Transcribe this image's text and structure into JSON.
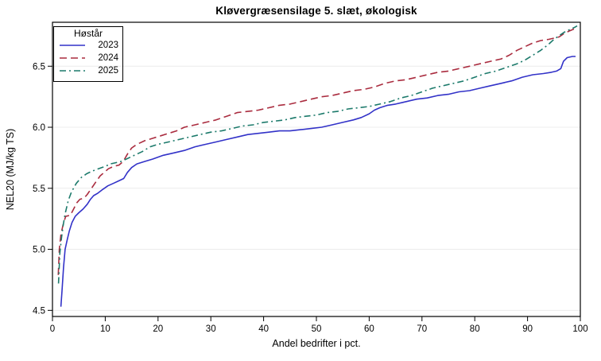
{
  "chart_data": {
    "type": "line",
    "title": "Kløvergræsensilage 5. slæt, økologisk",
    "xlabel": "Andel bedrifter i pct.",
    "ylabel": "NEL20 (MJ/kg TS)",
    "xlim": [
      0,
      100
    ],
    "ylim": [
      4.45,
      6.86
    ],
    "x_ticks": [
      0,
      10,
      20,
      30,
      40,
      50,
      60,
      70,
      80,
      90,
      100
    ],
    "x_tick_labels": [
      "0",
      "10",
      "20",
      "30",
      "40",
      "50",
      "60",
      "70",
      "80",
      "90",
      "100"
    ],
    "y_ticks": [
      4.5,
      5.0,
      5.5,
      6.0,
      6.5
    ],
    "y_tick_labels": [
      "4.5",
      "5.0",
      "5.5",
      "6.0",
      "6.5"
    ],
    "grid": "horizontal gridlines on, light gray",
    "legend": {
      "title": "Høstår",
      "position": "top-left-inside"
    },
    "series": [
      {
        "name": "2023",
        "color": "#3232c8",
        "dash": "",
        "points": [
          [
            1.6,
            4.53
          ],
          [
            1.8,
            4.66
          ],
          [
            2.1,
            4.85
          ],
          [
            2.4,
            5.0
          ],
          [
            2.8,
            5.08
          ],
          [
            3.2,
            5.15
          ],
          [
            3.7,
            5.22
          ],
          [
            4.3,
            5.27
          ],
          [
            5,
            5.3
          ],
          [
            5.8,
            5.33
          ],
          [
            6.6,
            5.37
          ],
          [
            7.2,
            5.41
          ],
          [
            7.8,
            5.44
          ],
          [
            8.6,
            5.46
          ],
          [
            9.5,
            5.49
          ],
          [
            10.5,
            5.52
          ],
          [
            11.5,
            5.54
          ],
          [
            12.5,
            5.56
          ],
          [
            13.5,
            5.58
          ],
          [
            14.2,
            5.63
          ],
          [
            15,
            5.67
          ],
          [
            16,
            5.7
          ],
          [
            17.5,
            5.72
          ],
          [
            19,
            5.74
          ],
          [
            21,
            5.77
          ],
          [
            23,
            5.79
          ],
          [
            25,
            5.81
          ],
          [
            27,
            5.84
          ],
          [
            29,
            5.86
          ],
          [
            31,
            5.88
          ],
          [
            33,
            5.9
          ],
          [
            35,
            5.92
          ],
          [
            37,
            5.94
          ],
          [
            39,
            5.95
          ],
          [
            41,
            5.96
          ],
          [
            43,
            5.97
          ],
          [
            45,
            5.97
          ],
          [
            47,
            5.98
          ],
          [
            49,
            5.99
          ],
          [
            51,
            6.0
          ],
          [
            53,
            6.02
          ],
          [
            55,
            6.04
          ],
          [
            57,
            6.06
          ],
          [
            58.5,
            6.08
          ],
          [
            60,
            6.11
          ],
          [
            61,
            6.14
          ],
          [
            62,
            6.16
          ],
          [
            63.5,
            6.18
          ],
          [
            65,
            6.19
          ],
          [
            67,
            6.21
          ],
          [
            69,
            6.23
          ],
          [
            71,
            6.24
          ],
          [
            73,
            6.26
          ],
          [
            75,
            6.27
          ],
          [
            77,
            6.29
          ],
          [
            79,
            6.3
          ],
          [
            81,
            6.32
          ],
          [
            83,
            6.34
          ],
          [
            85,
            6.36
          ],
          [
            87,
            6.38
          ],
          [
            89,
            6.41
          ],
          [
            91,
            6.43
          ],
          [
            93,
            6.44
          ],
          [
            94.5,
            6.45
          ],
          [
            95.5,
            6.46
          ],
          [
            96.3,
            6.48
          ],
          [
            96.8,
            6.54
          ],
          [
            97.5,
            6.57
          ],
          [
            98.5,
            6.58
          ],
          [
            99.1,
            6.58
          ]
        ]
      },
      {
        "name": "2024",
        "color": "#aa2c3f",
        "dash": "9 5",
        "points": [
          [
            1.1,
            4.79
          ],
          [
            1.3,
            5.0
          ],
          [
            1.6,
            5.12
          ],
          [
            2,
            5.2
          ],
          [
            2.5,
            5.27
          ],
          [
            3.4,
            5.28
          ],
          [
            4,
            5.33
          ],
          [
            4.6,
            5.38
          ],
          [
            5.2,
            5.41
          ],
          [
            6,
            5.42
          ],
          [
            6.6,
            5.45
          ],
          [
            7.4,
            5.5
          ],
          [
            8.2,
            5.55
          ],
          [
            9,
            5.6
          ],
          [
            9.8,
            5.63
          ],
          [
            10.6,
            5.66
          ],
          [
            11.6,
            5.68
          ],
          [
            12.6,
            5.69
          ],
          [
            13.4,
            5.72
          ],
          [
            14.2,
            5.78
          ],
          [
            15,
            5.83
          ],
          [
            16,
            5.86
          ],
          [
            17.5,
            5.89
          ],
          [
            19,
            5.91
          ],
          [
            20.5,
            5.93
          ],
          [
            22,
            5.95
          ],
          [
            23.5,
            5.97
          ],
          [
            25,
            6.0
          ],
          [
            27,
            6.02
          ],
          [
            29,
            6.04
          ],
          [
            31,
            6.06
          ],
          [
            33,
            6.09
          ],
          [
            35,
            6.12
          ],
          [
            37,
            6.13
          ],
          [
            39,
            6.14
          ],
          [
            41,
            6.16
          ],
          [
            43,
            6.18
          ],
          [
            45,
            6.19
          ],
          [
            47,
            6.21
          ],
          [
            49,
            6.23
          ],
          [
            51,
            6.25
          ],
          [
            53,
            6.26
          ],
          [
            55,
            6.28
          ],
          [
            57,
            6.3
          ],
          [
            59,
            6.31
          ],
          [
            61,
            6.33
          ],
          [
            63,
            6.36
          ],
          [
            65,
            6.38
          ],
          [
            67,
            6.39
          ],
          [
            69,
            6.41
          ],
          [
            71,
            6.43
          ],
          [
            73,
            6.45
          ],
          [
            75,
            6.46
          ],
          [
            77,
            6.48
          ],
          [
            79,
            6.5
          ],
          [
            81,
            6.52
          ],
          [
            83,
            6.54
          ],
          [
            85,
            6.56
          ],
          [
            86.5,
            6.59
          ],
          [
            88,
            6.63
          ],
          [
            89.5,
            6.66
          ],
          [
            91,
            6.69
          ],
          [
            92.5,
            6.71
          ],
          [
            94,
            6.72
          ],
          [
            95,
            6.73
          ],
          [
            96,
            6.74
          ],
          [
            97,
            6.77
          ],
          [
            98,
            6.79
          ],
          [
            99.1,
            6.81
          ]
        ]
      },
      {
        "name": "2025",
        "color": "#1c7a6b",
        "dash": "8 4 2 4",
        "points": [
          [
            1.15,
            4.72
          ],
          [
            1.4,
            4.97
          ],
          [
            1.7,
            5.09
          ],
          [
            2,
            5.19
          ],
          [
            2.4,
            5.29
          ],
          [
            3,
            5.4
          ],
          [
            3.6,
            5.47
          ],
          [
            4.5,
            5.54
          ],
          [
            5.5,
            5.59
          ],
          [
            6.5,
            5.62
          ],
          [
            7.5,
            5.64
          ],
          [
            8.7,
            5.66
          ],
          [
            10,
            5.68
          ],
          [
            11,
            5.7
          ],
          [
            12,
            5.71
          ],
          [
            13,
            5.72
          ],
          [
            14,
            5.74
          ],
          [
            15,
            5.76
          ],
          [
            16,
            5.78
          ],
          [
            17,
            5.8
          ],
          [
            18.5,
            5.84
          ],
          [
            20,
            5.86
          ],
          [
            22,
            5.88
          ],
          [
            24,
            5.9
          ],
          [
            26,
            5.92
          ],
          [
            28,
            5.94
          ],
          [
            30,
            5.96
          ],
          [
            32,
            5.97
          ],
          [
            34,
            5.99
          ],
          [
            36,
            6.01
          ],
          [
            38,
            6.02
          ],
          [
            40,
            6.04
          ],
          [
            42,
            6.05
          ],
          [
            44,
            6.06
          ],
          [
            46,
            6.08
          ],
          [
            48,
            6.09
          ],
          [
            50,
            6.1
          ],
          [
            52,
            6.12
          ],
          [
            54,
            6.13
          ],
          [
            56,
            6.15
          ],
          [
            58,
            6.16
          ],
          [
            60,
            6.17
          ],
          [
            62,
            6.19
          ],
          [
            64,
            6.21
          ],
          [
            66,
            6.24
          ],
          [
            68,
            6.26
          ],
          [
            70,
            6.29
          ],
          [
            72,
            6.32
          ],
          [
            74,
            6.34
          ],
          [
            76,
            6.36
          ],
          [
            78,
            6.38
          ],
          [
            80,
            6.41
          ],
          [
            82,
            6.44
          ],
          [
            84,
            6.46
          ],
          [
            86,
            6.49
          ],
          [
            88,
            6.52
          ],
          [
            89.5,
            6.55
          ],
          [
            91,
            6.59
          ],
          [
            92.5,
            6.63
          ],
          [
            94,
            6.68
          ],
          [
            95,
            6.72
          ],
          [
            96,
            6.75
          ],
          [
            97,
            6.78
          ],
          [
            98,
            6.8
          ],
          [
            99,
            6.82
          ],
          [
            99.4,
            6.83
          ]
        ]
      }
    ]
  },
  "colors": {
    "background": "#ffffff",
    "grid": "#ececec",
    "axis": "#000000",
    "series_2023": "#3232c8",
    "series_2024": "#aa2c3f",
    "series_2025": "#1c7a6b"
  }
}
